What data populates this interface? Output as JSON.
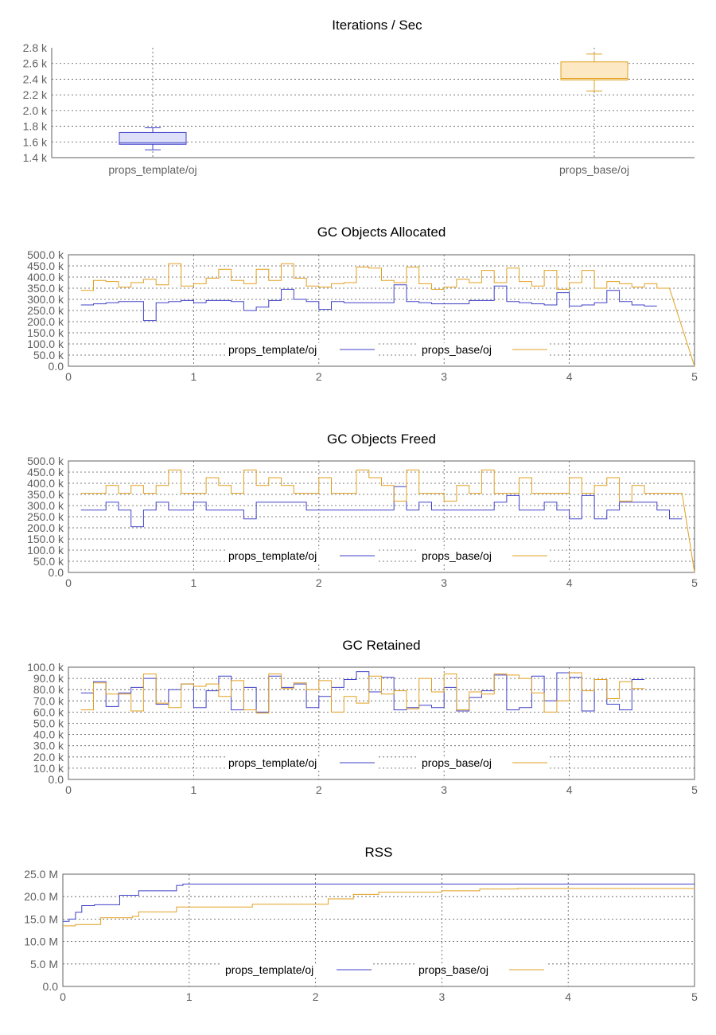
{
  "colors": {
    "template": "#4040c8",
    "base": "#e0a020",
    "template_fill": "#dde0f8",
    "base_fill": "#fde8c4"
  },
  "chart_data": [
    {
      "type": "box",
      "title": "Iterations / Sec",
      "ylim": [
        1400,
        2800
      ],
      "yticks": [
        "1.4 k",
        "1.6 k",
        "1.8 k",
        "2.0 k",
        "2.2 k",
        "2.4 k",
        "2.6 k",
        "2.8 k"
      ],
      "ytick_values": [
        1400,
        1600,
        1800,
        2000,
        2200,
        2400,
        2600,
        2800
      ],
      "categories": [
        "props_template/oj",
        "props_base/oj"
      ],
      "boxes": [
        {
          "name": "props_template/oj",
          "whisker_low": 1500,
          "q1": 1570,
          "median": 1590,
          "q3": 1720,
          "whisker_high": 1780
        },
        {
          "name": "props_base/oj",
          "whisker_low": 2250,
          "q1": 2390,
          "median": 2410,
          "q3": 2620,
          "whisker_high": 2720
        }
      ],
      "grid": true
    },
    {
      "type": "line",
      "title": "GC Objects Allocated",
      "xlim": [
        0,
        5
      ],
      "ylim": [
        0,
        500000
      ],
      "xticks": [
        "0",
        "1",
        "2",
        "3",
        "4",
        "5"
      ],
      "yticks": [
        "0.0",
        "50.0 k",
        "100.0 k",
        "150.0 k",
        "200.0 k",
        "250.0 k",
        "300.0 k",
        "350.0 k",
        "400.0 k",
        "450.0 k",
        "500.0 k"
      ],
      "legend": "bottom-center",
      "series": [
        {
          "name": "props_template/oj",
          "color": "template",
          "step": 0.1,
          "x0": 0.1,
          "values": [
            275000,
            280000,
            285000,
            290000,
            290000,
            205000,
            285000,
            290000,
            295000,
            285000,
            295000,
            295000,
            290000,
            250000,
            265000,
            295000,
            345000,
            300000,
            290000,
            255000,
            290000,
            285000,
            285000,
            285000,
            285000,
            365000,
            290000,
            285000,
            280000,
            280000,
            280000,
            295000,
            295000,
            360000,
            290000,
            285000,
            280000,
            275000,
            330000,
            270000,
            275000,
            285000,
            340000,
            290000,
            275000,
            270000
          ]
        },
        {
          "name": "props_base/oj",
          "color": "base",
          "step": 0.1,
          "x0": 0.1,
          "values": [
            340000,
            385000,
            380000,
            355000,
            375000,
            390000,
            365000,
            460000,
            360000,
            370000,
            395000,
            435000,
            385000,
            370000,
            435000,
            385000,
            460000,
            395000,
            360000,
            355000,
            370000,
            375000,
            445000,
            440000,
            385000,
            375000,
            445000,
            370000,
            345000,
            355000,
            390000,
            375000,
            430000,
            375000,
            440000,
            380000,
            360000,
            430000,
            345000,
            375000,
            430000,
            350000,
            380000,
            370000,
            355000,
            370000,
            350000
          ]
        }
      ],
      "grid": true
    },
    {
      "type": "line",
      "title": "GC Objects Freed",
      "xlim": [
        0,
        5
      ],
      "ylim": [
        0,
        500000
      ],
      "xticks": [
        "0",
        "1",
        "2",
        "3",
        "4",
        "5"
      ],
      "yticks": [
        "0.0",
        "50.0 k",
        "100.0 k",
        "150.0 k",
        "200.0 k",
        "250.0 k",
        "300.0 k",
        "350.0 k",
        "400.0 k",
        "450.0 k",
        "500.0 k"
      ],
      "legend": "bottom-center",
      "series": [
        {
          "name": "props_template/oj",
          "color": "template",
          "step": 0.1,
          "x0": 0.1,
          "values": [
            280000,
            280000,
            315000,
            280000,
            205000,
            280000,
            315000,
            280000,
            280000,
            315000,
            280000,
            280000,
            280000,
            240000,
            315000,
            315000,
            315000,
            315000,
            280000,
            280000,
            280000,
            280000,
            280000,
            280000,
            280000,
            385000,
            280000,
            315000,
            280000,
            280000,
            280000,
            280000,
            280000,
            315000,
            345000,
            280000,
            280000,
            315000,
            280000,
            240000,
            345000,
            240000,
            280000,
            315000,
            315000,
            315000,
            280000,
            240000
          ]
        },
        {
          "name": "props_base/oj",
          "color": "base",
          "step": 0.1,
          "x0": 0.1,
          "values": [
            355000,
            355000,
            390000,
            355000,
            390000,
            355000,
            390000,
            460000,
            355000,
            355000,
            425000,
            390000,
            355000,
            460000,
            390000,
            425000,
            390000,
            355000,
            355000,
            425000,
            355000,
            355000,
            460000,
            425000,
            390000,
            320000,
            460000,
            355000,
            355000,
            320000,
            390000,
            355000,
            460000,
            355000,
            355000,
            425000,
            355000,
            355000,
            355000,
            425000,
            355000,
            390000,
            425000,
            320000,
            390000,
            355000,
            355000,
            355000
          ]
        }
      ],
      "grid": true
    },
    {
      "type": "line",
      "title": "GC Retained",
      "xlim": [
        0,
        5
      ],
      "ylim": [
        0,
        100000
      ],
      "xticks": [
        "0",
        "1",
        "2",
        "3",
        "4",
        "5"
      ],
      "yticks": [
        "0.0",
        "10.0 k",
        "20.0 k",
        "30.0 k",
        "40.0 k",
        "50.0 k",
        "60.0 k",
        "70.0 k",
        "80.0 k",
        "90.0 k",
        "100.0 k"
      ],
      "legend": "bottom-center",
      "series": [
        {
          "name": "props_template/oj",
          "color": "template",
          "step": 0.1,
          "x0": 0.1,
          "values": [
            77000,
            87000,
            65000,
            77000,
            82000,
            90000,
            67000,
            80000,
            85000,
            64000,
            79000,
            92000,
            62000,
            82000,
            60000,
            92000,
            82000,
            85000,
            64000,
            74000,
            82000,
            89000,
            96000,
            78000,
            91000,
            62000,
            64000,
            66000,
            64000,
            82000,
            61000,
            73000,
            79000,
            93000,
            62000,
            64000,
            92000,
            70000,
            95000,
            91000,
            61000,
            89000,
            67000,
            62000,
            89000
          ]
        },
        {
          "name": "props_base/oj",
          "color": "base",
          "step": 0.1,
          "x0": 0.1,
          "values": [
            62000,
            86000,
            76000,
            76000,
            61000,
            94000,
            68000,
            64000,
            85000,
            83000,
            85000,
            74000,
            88000,
            62000,
            59000,
            94000,
            81000,
            86000,
            80000,
            88000,
            60000,
            74000,
            68000,
            92000,
            76000,
            79000,
            63000,
            90000,
            78000,
            94000,
            62000,
            78000,
            76000,
            94000,
            93000,
            90000,
            77000,
            60000,
            70000,
            95000,
            79000,
            89000,
            72000,
            87000,
            81000
          ]
        }
      ],
      "grid": true
    },
    {
      "type": "line",
      "title": "RSS",
      "xlim": [
        0,
        5
      ],
      "ylim": [
        0,
        25000000
      ],
      "xticks": [
        "0",
        "1",
        "2",
        "3",
        "4",
        "5"
      ],
      "yticks": [
        "0.0",
        "5.0 M",
        "10.0 M",
        "15.0 M",
        "20.0 M",
        "25.0 M"
      ],
      "legend": "bottom-center",
      "series": [
        {
          "name": "props_template/oj",
          "color": "template",
          "x": [
            0,
            0.05,
            0.1,
            0.15,
            0.25,
            0.45,
            0.6,
            0.9,
            0.95,
            5.0
          ],
          "values": [
            14500000,
            15000000,
            16500000,
            18000000,
            18200000,
            20300000,
            21300000,
            22500000,
            22800000,
            22800000
          ]
        },
        {
          "name": "props_base/oj",
          "color": "base",
          "x": [
            0,
            0.1,
            0.3,
            0.55,
            0.6,
            0.9,
            1.5,
            2.1,
            2.3,
            2.5,
            3.0,
            3.3,
            3.6,
            5.0
          ],
          "values": [
            13500000,
            13800000,
            15300000,
            15600000,
            16600000,
            17700000,
            18300000,
            19500000,
            20500000,
            21000000,
            21300000,
            21700000,
            21800000,
            21900000
          ]
        }
      ],
      "grid": true
    }
  ]
}
